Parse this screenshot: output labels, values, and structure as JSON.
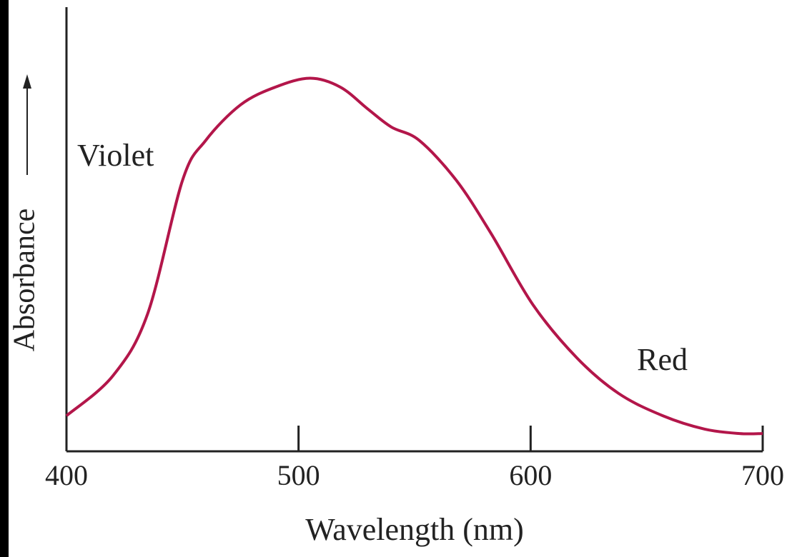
{
  "chart_data": {
    "type": "line",
    "x_label": "Wavelength (nm)",
    "y_label": "Absorbance",
    "annotations": [
      {
        "text": "Violet"
      },
      {
        "text": "Red"
      }
    ],
    "x": [
      400,
      420,
      435,
      450,
      460,
      475,
      490,
      505,
      518,
      530,
      540,
      552,
      568,
      583,
      601,
      620,
      638,
      657,
      675,
      690,
      700
    ],
    "series": [
      {
        "color": "#b3164a",
        "values": [
          0.08,
          0.17,
          0.31,
          0.61,
          0.7,
          0.78,
          0.82,
          0.84,
          0.82,
          0.77,
          0.73,
          0.7,
          0.61,
          0.49,
          0.33,
          0.21,
          0.13,
          0.08,
          0.05,
          0.04,
          0.04
        ]
      }
    ],
    "xlim": [
      400,
      700
    ],
    "xticks": [
      400,
      500,
      600,
      700
    ],
    "ylim": [
      0,
      1
    ]
  }
}
